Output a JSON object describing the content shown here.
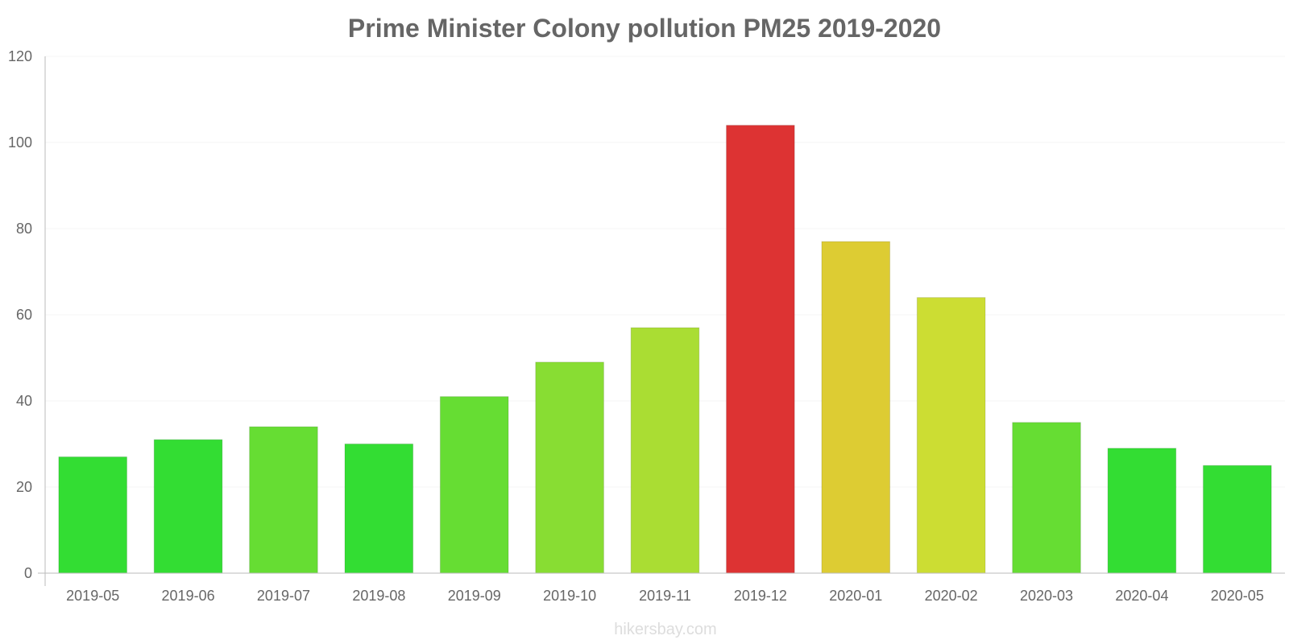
{
  "chart_data": {
    "type": "bar",
    "title": "Prime Minister Colony pollution PM25 2019-2020",
    "xlabel": "",
    "ylabel": "",
    "ylim": [
      0,
      120
    ],
    "yticks": [
      0,
      20,
      40,
      60,
      80,
      100,
      120
    ],
    "grid": true,
    "legend": "none",
    "categories": [
      "2019-05",
      "2019-06",
      "2019-07",
      "2019-08",
      "2019-09",
      "2019-10",
      "2019-11",
      "2019-12",
      "2020-01",
      "2020-02",
      "2020-03",
      "2020-04",
      "2020-05"
    ],
    "values": [
      27,
      31,
      34,
      30,
      41,
      49,
      57,
      104,
      77,
      64,
      35,
      29,
      25
    ],
    "colors": [
      "#33dd33",
      "#33dd33",
      "#66dd33",
      "#33dd33",
      "#66dd33",
      "#88dd33",
      "#aadd33",
      "#dd3333",
      "#ddcc33",
      "#ccdd33",
      "#66dd33",
      "#33dd33",
      "#33dd33"
    ],
    "source": "hikersbay.com"
  },
  "colors": {
    "title": "#666666",
    "tick_text": "#666666",
    "axis": "#bbbbbb",
    "grid": "#f4f4f4",
    "source": "#dddddd"
  }
}
